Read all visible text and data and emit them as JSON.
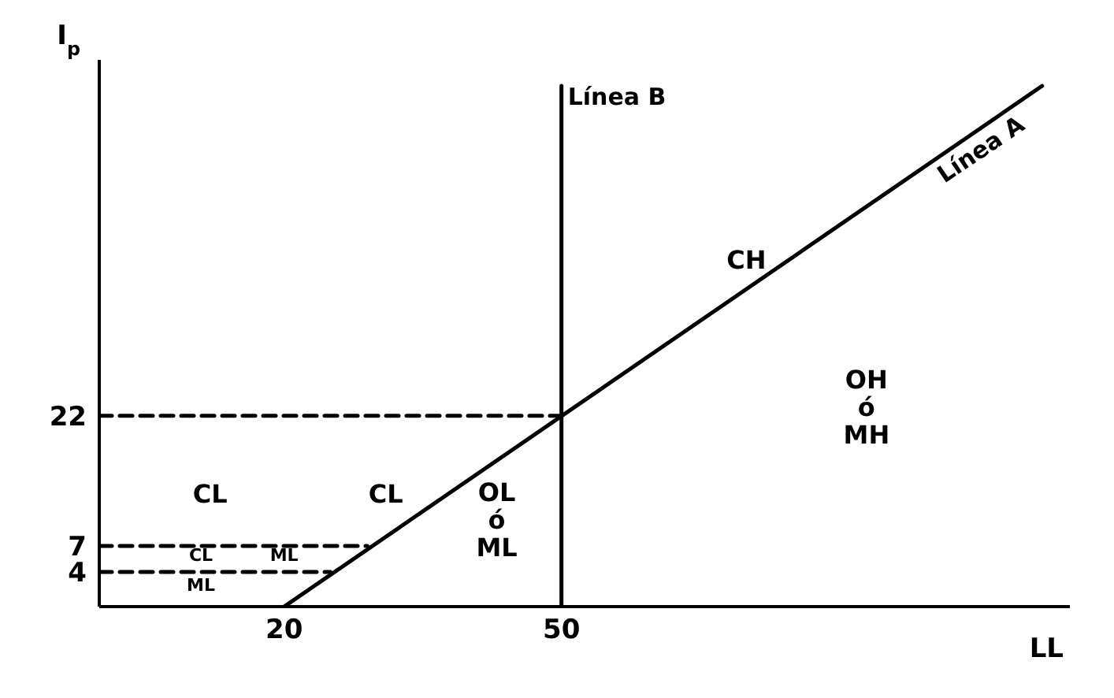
{
  "chart_data": {
    "type": "line",
    "xlabel": "LL",
    "ylabel": "I$_{p}$",
    "xlim": [
      0,
      105
    ],
    "ylim": [
      0,
      63
    ],
    "xticks": [
      20,
      50
    ],
    "yticks": [
      4,
      7,
      22
    ],
    "grid": false,
    "legend": false,
    "marker": "none",
    "series": [
      {
        "name": "Línea A",
        "color": "#000000",
        "line_style": "solid",
        "x": [
          20,
          102
        ],
        "values": [
          0,
          60
        ]
      },
      {
        "name": "Línea B",
        "color": "#000000",
        "line_style": "solid",
        "x": [
          50,
          50
        ],
        "values": [
          0,
          60
        ]
      },
      {
        "color": "#000000",
        "line_style": "dashed",
        "x": [
          0,
          50
        ],
        "values": [
          22,
          22
        ]
      },
      {
        "color": "#000000",
        "line_style": "dashed",
        "x": [
          0,
          29
        ],
        "values": [
          7,
          7
        ]
      },
      {
        "color": "#000000",
        "line_style": "dashed",
        "x": [
          0,
          25
        ],
        "values": [
          4,
          4
        ]
      }
    ],
    "annotations": [
      "CH",
      "OH\nó\nMH",
      "CL",
      "CL",
      "OL\nó\nML",
      "CL",
      "ML",
      "ML"
    ]
  }
}
